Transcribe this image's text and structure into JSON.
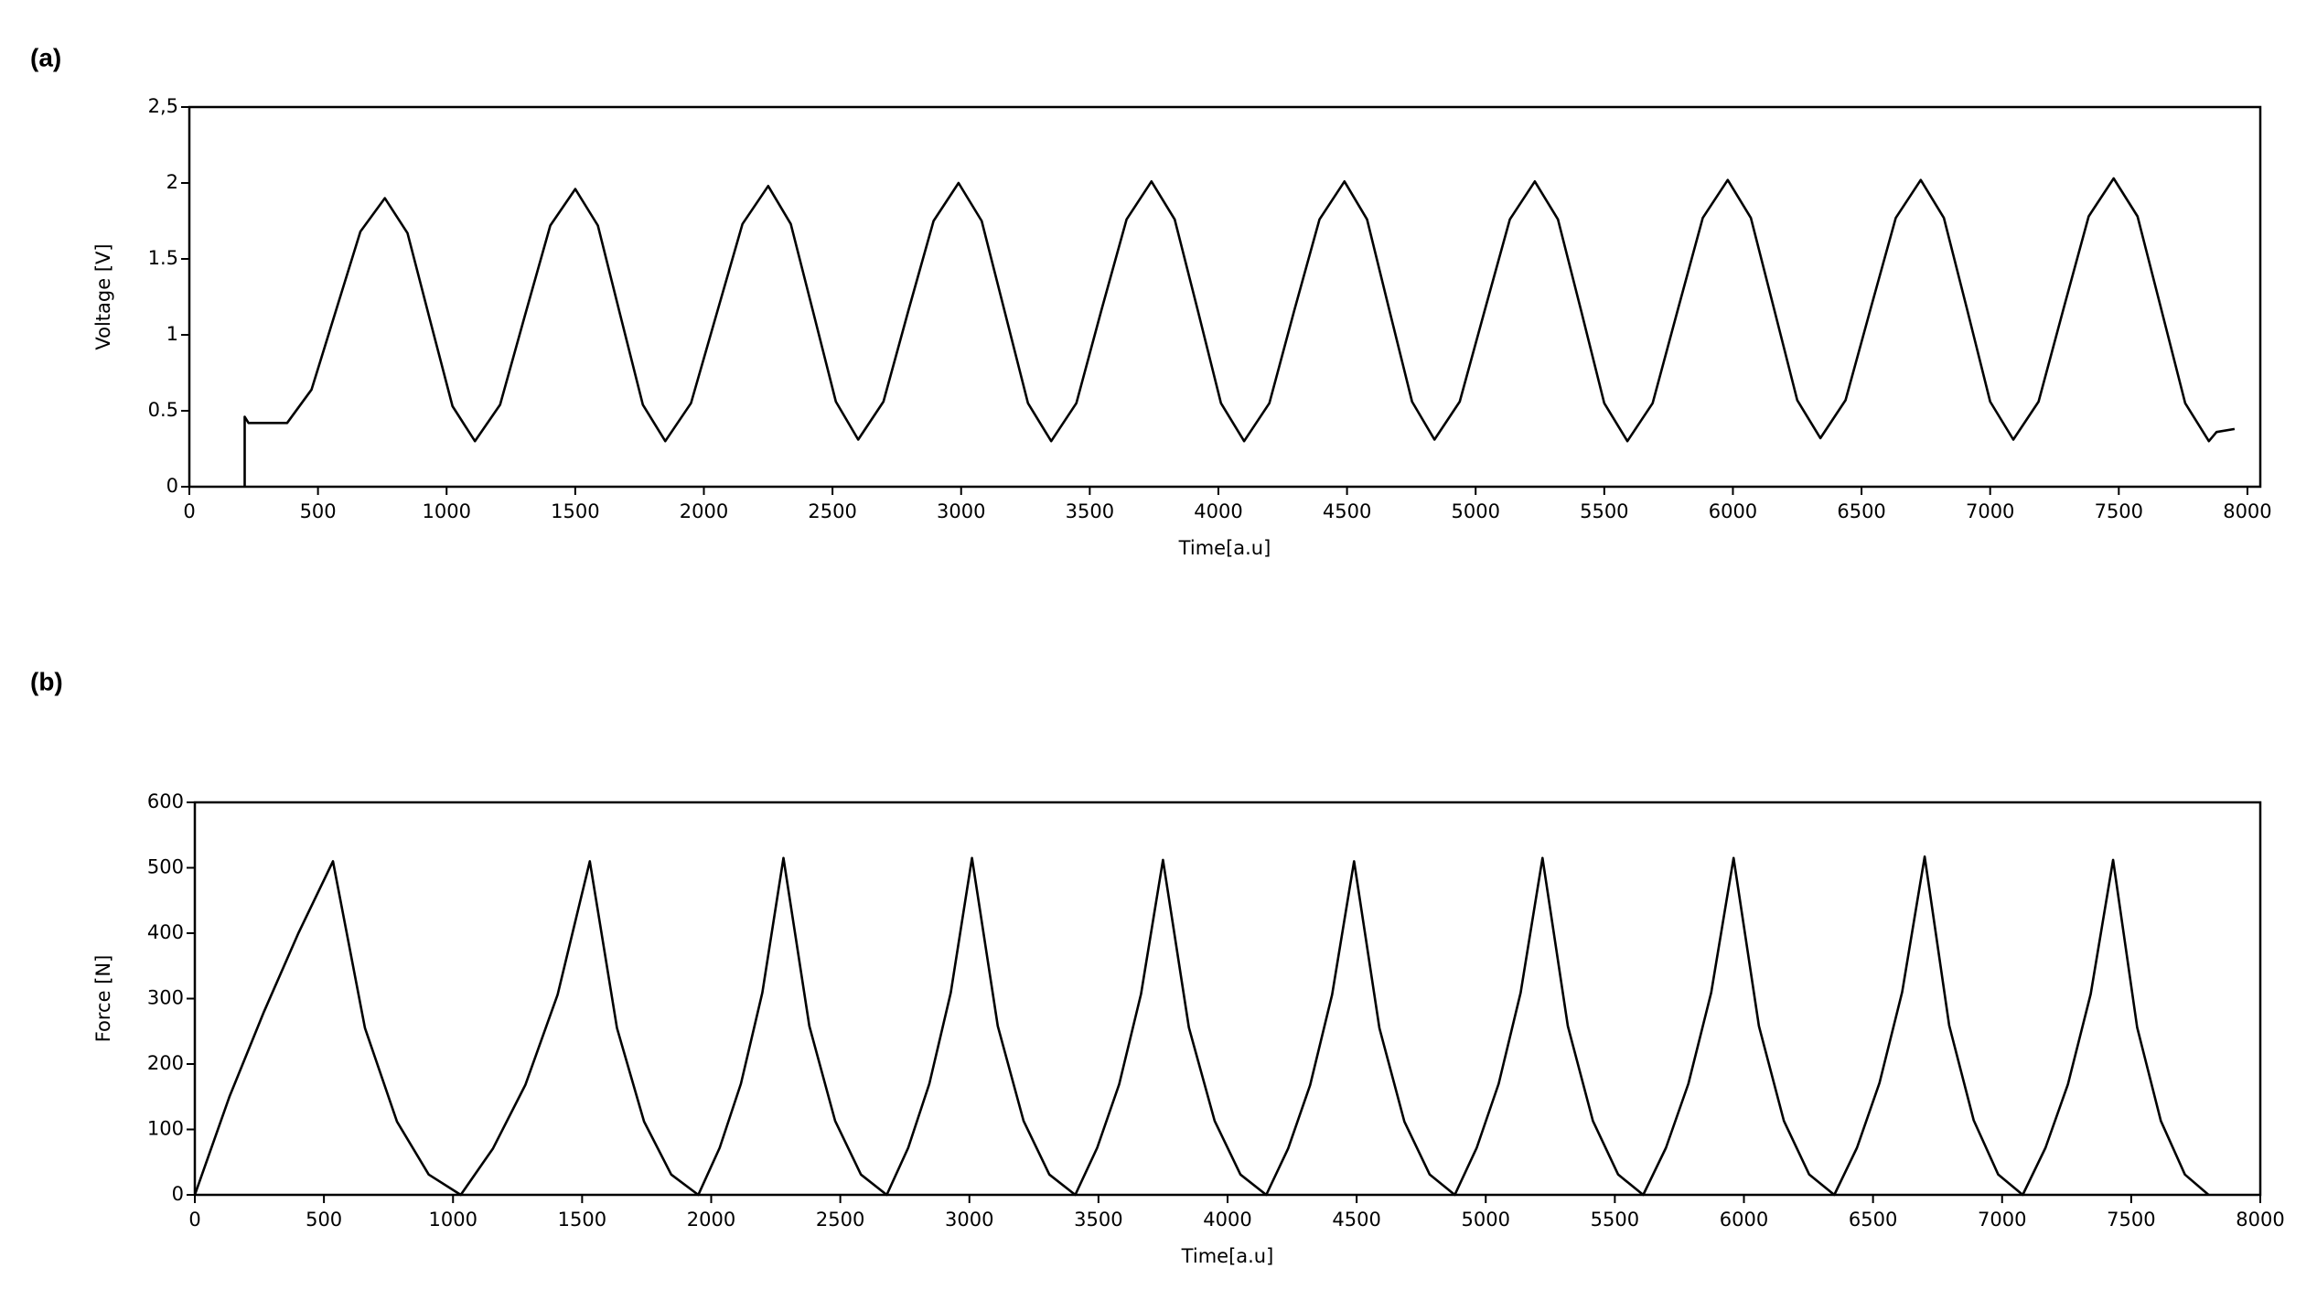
{
  "chart_data": [
    {
      "type": "line",
      "label": "(a)",
      "xlabel": "Time[a.u]",
      "ylabel": "Voltage [V]",
      "color": "#000000",
      "xlim": [
        0,
        8050
      ],
      "ylim": [
        0,
        2.5
      ],
      "xticks": [
        0,
        500,
        1000,
        1500,
        2000,
        2500,
        3000,
        3500,
        4000,
        4500,
        5000,
        5500,
        6000,
        6500,
        7000,
        7500,
        8000
      ],
      "yticks": [
        0,
        0.5,
        1,
        1.5,
        2,
        {
          "value": 2.5,
          "label": "2,5"
        }
      ],
      "x": [
        215,
        215,
        230,
        380,
        475,
        570,
        665,
        760,
        848,
        935,
        1023,
        1110,
        1208,
        1305,
        1403,
        1500,
        1588,
        1675,
        1763,
        1850,
        1950,
        2050,
        2150,
        2250,
        2338,
        2425,
        2513,
        2600,
        2698,
        2795,
        2893,
        2990,
        3080,
        3170,
        3260,
        3350,
        3448,
        3545,
        3643,
        3740,
        3830,
        3920,
        4010,
        4100,
        4198,
        4295,
        4393,
        4490,
        4578,
        4665,
        4753,
        4840,
        4938,
        5035,
        5133,
        5230,
        5320,
        5410,
        5500,
        5590,
        5688,
        5785,
        5883,
        5980,
        6070,
        6160,
        6250,
        6340,
        6438,
        6535,
        6633,
        6730,
        6820,
        6910,
        7000,
        7090,
        7188,
        7285,
        7383,
        7480,
        7573,
        7665,
        7758,
        7850,
        7880,
        7950
      ],
      "values": [
        0,
        0.46,
        0.42,
        0.42,
        0.64,
        1.16,
        1.68,
        1.9,
        1.67,
        1.1,
        0.53,
        0.3,
        0.54,
        1.13,
        1.72,
        1.96,
        1.72,
        1.13,
        0.54,
        0.3,
        0.55,
        1.14,
        1.73,
        1.98,
        1.73,
        1.15,
        0.56,
        0.31,
        0.56,
        1.16,
        1.75,
        2.0,
        1.75,
        1.15,
        0.55,
        0.3,
        0.55,
        1.16,
        1.76,
        2.01,
        1.76,
        1.16,
        0.55,
        0.3,
        0.55,
        1.16,
        1.76,
        2.01,
        1.76,
        1.16,
        0.56,
        0.31,
        0.56,
        1.16,
        1.76,
        2.01,
        1.76,
        1.16,
        0.55,
        0.3,
        0.55,
        1.16,
        1.77,
        2.02,
        1.77,
        1.17,
        0.57,
        0.32,
        0.57,
        1.17,
        1.77,
        2.02,
        1.77,
        1.17,
        0.56,
        0.31,
        0.56,
        1.17,
        1.78,
        2.03,
        1.78,
        1.17,
        0.55,
        0.3,
        0.36,
        0.38
      ]
    },
    {
      "type": "line",
      "label": "(b)",
      "xlabel": "Time[a.u]",
      "ylabel": "Force [N]",
      "color": "#000000",
      "xlim": [
        0,
        8000
      ],
      "ylim": [
        0,
        600
      ],
      "xticks": [
        0,
        500,
        1000,
        1500,
        2000,
        2500,
        3000,
        3500,
        4000,
        4500,
        5000,
        5500,
        6000,
        6500,
        7000,
        7500,
        8000
      ],
      "yticks": [
        0,
        100,
        200,
        300,
        400,
        500,
        600
      ],
      "x": [
        0,
        134,
        268,
        401,
        535,
        659,
        783,
        906,
        1030,
        1155,
        1280,
        1405,
        1530,
        1635,
        1740,
        1845,
        1950,
        2033,
        2115,
        2198,
        2280,
        2380,
        2480,
        2580,
        2680,
        2763,
        2845,
        2928,
        3010,
        3110,
        3210,
        3310,
        3410,
        3495,
        3580,
        3665,
        3750,
        3850,
        3950,
        4050,
        4150,
        4235,
        4320,
        4405,
        4490,
        4588,
        4685,
        4783,
        4880,
        4965,
        5050,
        5135,
        5220,
        5318,
        5415,
        5513,
        5610,
        5698,
        5785,
        5873,
        5960,
        6058,
        6155,
        6253,
        6350,
        6438,
        6525,
        6613,
        6700,
        6795,
        6890,
        6985,
        7080,
        7168,
        7255,
        7343,
        7430,
        7523,
        7615,
        7708,
        7800
      ],
      "values": [
        0,
        150,
        280,
        400,
        510,
        255,
        112,
        31,
        0,
        71,
        168,
        306,
        510,
        255,
        112,
        31,
        0,
        72,
        170,
        309,
        515,
        258,
        113,
        31,
        0,
        72,
        170,
        309,
        515,
        258,
        113,
        31,
        0,
        72,
        169,
        307,
        512,
        256,
        113,
        31,
        0,
        71,
        168,
        306,
        510,
        255,
        112,
        31,
        0,
        72,
        170,
        309,
        515,
        258,
        113,
        31,
        0,
        72,
        170,
        309,
        515,
        258,
        113,
        31,
        0,
        72,
        171,
        310,
        517,
        259,
        114,
        31,
        0,
        72,
        169,
        307,
        512,
        256,
        113,
        31,
        0
      ]
    }
  ]
}
